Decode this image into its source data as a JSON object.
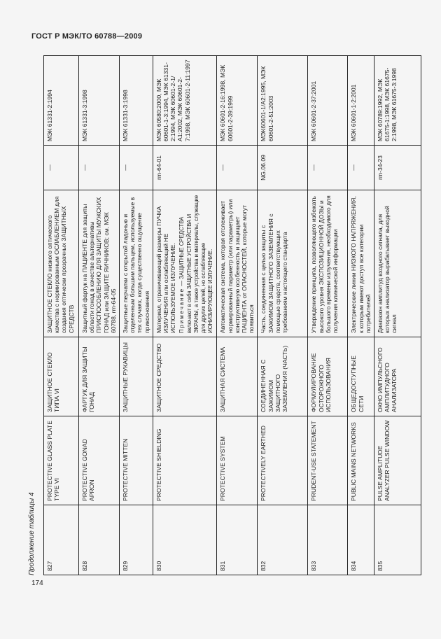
{
  "header": {
    "title": "ГОСТ Р МЭК/ТО 60788—2009"
  },
  "caption": "Продолжение таблицы 4",
  "page_number": "174",
  "rows": [
    {
      "num": "827",
      "en": "PROTECTIVE GLASS PLATE TYPE VI",
      "ru": "ЗАЩИТНОЕ СТЕКЛО ТИПА VI",
      "def": "ЗАЩИТНОЕ СТЕКЛО низкого оптического качества с нормированным ОСЛАБЛЕНИЕМ для создания оптически прозрачных ЗАЩИТНЫХ СРЕДСТВ",
      "note_label": "",
      "note": "",
      "code": "—",
      "refs": "МЭК 61331-2:1994"
    },
    {
      "num": "828",
      "en": "PROTECTIVE GONAD APRON",
      "ru": "ФАРТУК ДЛЯ ЗАЩИТЫ ГОНАД",
      "def": "Защитный фартук на ПАЦИЕНТЕ для защиты области гонад в качестве альтернативы ПРИСПОСОБЛЕНИЮ ДЛЯ ЗАЩИТЫ МУЖСКИХ ГОНАД или ЗАЩИТЕ ЯИЧНИКОВ; см. МЭК 60788, rm-64-05",
      "note_label": "",
      "note": "",
      "code": "—",
      "refs": "МЭК 61331-3:1998"
    },
    {
      "num": "829",
      "en": "PROTECTIVE MITTEN",
      "ru": "ЗАЩИТНЫЕ РУКАВИЦЫ",
      "def": "Защитные перчатки с открытой ладонью и отделенным большим пальцем, используемые в тех случаях, когда существенно ощущение прикосновения",
      "note_label": "",
      "note": "",
      "code": "—",
      "refs": "МЭК 61331-3:1998"
    },
    {
      "num": "830",
      "en": "PROTECTIVE SHIELDING",
      "ru": "ЗАЩИТНОЕ СРЕДСТВО",
      "def": "Материал, ограничивающий размеры ПУЧКА ИЗЛУЧЕНИЯ или ослабляющий НЕ ИСПОЛЬЗУЕМОЕ ИЗЛУЧЕНИЕ.",
      "note_label": "Примечание",
      "note": " — ЗАЩИТНЫЕ СРЕДСТВА включают в себя ЗАЩИТНЫЕ УСТРОЙСТВА И ЭКРАНЫ, а также устройства и материалы, служащие для других целей, но ослабляющие ИОНИЗИРУЮЩЕЕ ИЗЛУЧЕНИЕ.",
      "code": "rm-64-01",
      "refs": "МЭК 60580:2000, МЭК 60601-1-3:1994, МЭК 61331-2:1994, МЭК 60601-2-1/А1:2002, МЭК 60601-2-7:1998, МЭК 60601-2-11:1997"
    },
    {
      "num": "831",
      "en": "PROTECTIVE SYSTEM",
      "ru": "ЗАЩИТНАЯ СИСТЕМА",
      "def": "Автоматическая система, которая отслеживает нормированный параметр (или параметры) или конструктивную особенность и защищает ПАЦИЕНТА от ОПАСНОСТЕЙ, которые могут появиться",
      "note_label": "",
      "note": "",
      "code": "—",
      "refs": "МЭК 60601-2-16:1998, МЭК 60601-2-39:1999"
    },
    {
      "num": "832",
      "en": "PROTECTIVELY EARTHED",
      "ru": "СОЕДИНЕННАЯ С ЗАЖИМОМ ЗАЩИТНОГО ЗАЗЕМЛЕНИЯ (ЧАСТЬ)",
      "def": "Часть, соединенная с целью защиты с ЗАЖИМОМ ЗАЩИТНОГО ЗАЗЕМЛЕНИЯ с помощью средств, соответствующих требованиям настоящего стандарта",
      "note_label": "",
      "note": "",
      "code": "NG.06.09",
      "refs": "МЭК60601-1/А2:1995, МЭК 60601-2-51:2003"
    },
    {
      "num": "833",
      "en": "PRUDENT-USE STATEMENT",
      "ru": "ФОРМУЛИРОВАНИЕ ОСТОРОЖНОГО ИСПОЛЬЗОВАНИЯ",
      "def": "Утверждение принципа, позволяющего избежать высокого уровня ЭКСПОЗИЦИОННОЙ ДОЗЫ и большого времени излучения, необходимого для получения клинической информации",
      "note_label": "",
      "note": "",
      "code": "—",
      "refs": "МЭК 60601-2-37:2001"
    },
    {
      "num": "834",
      "en": "PUBLIC MAINS NETWORKS",
      "ru": "ОБЩЕДОСТУПНЫЕ СЕТИ",
      "def": "Электрические линии НИЗКОГО НАПРЯЖЕНИЯ, к которым имеют доступ все категории потребителей",
      "note_label": "",
      "note": "",
      "code": "—",
      "refs": "МЭК 60601-1-2:2001"
    },
    {
      "num": "835",
      "en": "PULSE AMPLITUDE ANALYZER PULSE WINDOW",
      "ru": "ОКНО ИМПУЛЬСНОГО АМПЛИТУДНОГО АНАЛИЗАТОРА",
      "def": "Диапазон амплитуд входного сигнала, для которых анализатор вырабатывает выходной сигнал",
      "note_label": "",
      "note": "",
      "code": "rm-34-23",
      "refs": "МЭК 60789:1992, МЭК 61675-1:1998, МЭК 61675-2:1998, МЭК 61675-3:1998"
    }
  ]
}
